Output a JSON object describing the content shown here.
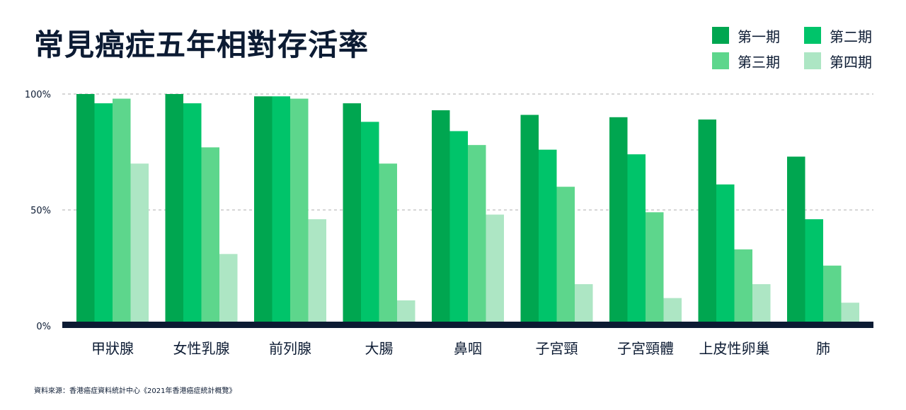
{
  "title": "常見癌症五年相對存活率",
  "source": "資料來源：香港癌症資料統計中心《2021年香港癌症統計概覽》",
  "colors": {
    "background": "#ffffff",
    "text": "#0c1b33",
    "baseline": "#0c1b33",
    "gridline": "#c8c8c8"
  },
  "chart_data": {
    "type": "bar",
    "categories": [
      "甲狀腺",
      "女性乳腺",
      "前列腺",
      "大腸",
      "鼻咽",
      "子宮頸",
      "子宮頸體",
      "上皮性卵巢",
      "肺"
    ],
    "series": [
      {
        "name": "第一期",
        "color": "#00a650",
        "values": [
          100,
          100,
          99,
          96,
          93,
          91,
          90,
          89,
          73
        ]
      },
      {
        "name": "第二期",
        "color": "#00c46a",
        "values": [
          96,
          96,
          99,
          88,
          84,
          76,
          74,
          61,
          46
        ]
      },
      {
        "name": "第三期",
        "color": "#5dd68c",
        "values": [
          98,
          77,
          98,
          70,
          78,
          60,
          49,
          33,
          26
        ]
      },
      {
        "name": "第四期",
        "color": "#ade6c4",
        "values": [
          70,
          31,
          46,
          11,
          48,
          18,
          12,
          18,
          10
        ]
      }
    ],
    "ylim": [
      0,
      100
    ],
    "yticks": [
      {
        "value": 0,
        "label": "0%"
      },
      {
        "value": 50,
        "label": "50%"
      },
      {
        "value": 100,
        "label": "100%"
      }
    ],
    "grid": true,
    "legend_position": "top-right"
  }
}
